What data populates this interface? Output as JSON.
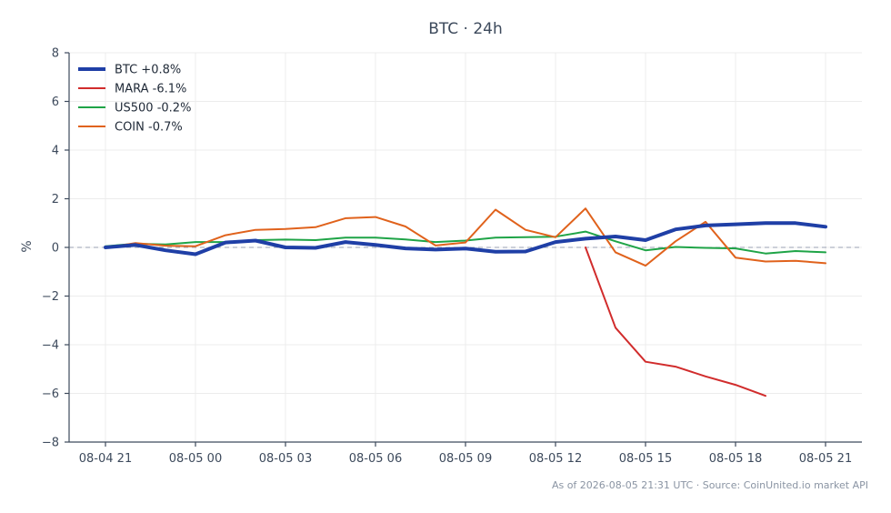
{
  "chart_data": {
    "type": "line",
    "title": "BTC · 24h",
    "xlabel": "",
    "ylabel": "%",
    "ylim": [
      -8,
      8
    ],
    "yticks": [
      -8,
      -6,
      -4,
      -2,
      0,
      2,
      4,
      6,
      8
    ],
    "ytick_labels": [
      "−8",
      "−6",
      "−4",
      "−2",
      "0",
      "2",
      "4",
      "6",
      "8"
    ],
    "x": [
      "08-04 21",
      "08-04 22",
      "08-04 23",
      "08-05 00",
      "08-05 01",
      "08-05 02",
      "08-05 03",
      "08-05 04",
      "08-05 05",
      "08-05 06",
      "08-05 07",
      "08-05 08",
      "08-05 09",
      "08-05 10",
      "08-05 11",
      "08-05 12",
      "08-05 13",
      "08-05 14",
      "08-05 15",
      "08-05 16",
      "08-05 17",
      "08-05 18",
      "08-05 19",
      "08-05 20",
      "08-05 21"
    ],
    "xtick_labels": [
      "08-04 21",
      "08-05 00",
      "08-05 03",
      "08-05 06",
      "08-05 09",
      "08-05 12",
      "08-05 15",
      "08-05 18",
      "08-05 21"
    ],
    "zero_line": true,
    "grid": true,
    "legend_position": "top-left",
    "series": [
      {
        "name": "BTC +0.8%",
        "color": "#1f3fa6",
        "width": "thick",
        "values": [
          0.0,
          0.1,
          -0.12,
          -0.28,
          0.2,
          0.28,
          0.0,
          -0.02,
          0.22,
          0.1,
          -0.04,
          -0.09,
          -0.05,
          -0.18,
          -0.17,
          0.22,
          0.36,
          0.45,
          0.3,
          0.74,
          0.9,
          0.95,
          1.0,
          1.0,
          0.85
        ]
      },
      {
        "name": "MARA -6.1%",
        "color": "#d12c2c",
        "width": "normal",
        "values": [
          null,
          null,
          null,
          null,
          null,
          null,
          null,
          null,
          null,
          null,
          null,
          null,
          null,
          null,
          null,
          null,
          0.0,
          -3.3,
          -4.7,
          -4.9,
          -5.3,
          -5.65,
          -6.1,
          null,
          null
        ]
      },
      {
        "name": "US500 -0.2%",
        "color": "#1fa447",
        "width": "normal",
        "values": [
          0.05,
          0.15,
          0.12,
          0.22,
          0.22,
          0.3,
          0.32,
          0.3,
          0.4,
          0.4,
          0.33,
          0.22,
          0.28,
          0.4,
          0.42,
          0.44,
          0.65,
          0.25,
          -0.12,
          0.02,
          -0.02,
          -0.04,
          -0.25,
          -0.15,
          -0.2
        ]
      },
      {
        "name": "COIN -0.7%",
        "color": "#e0621c",
        "width": "normal",
        "values": [
          -0.02,
          0.18,
          0.07,
          0.05,
          0.5,
          0.72,
          0.76,
          0.83,
          1.2,
          1.25,
          0.86,
          0.08,
          0.2,
          1.55,
          0.72,
          0.42,
          1.6,
          -0.2,
          -0.75,
          0.25,
          1.05,
          -0.42,
          -0.58,
          -0.55,
          -0.65
        ]
      }
    ]
  },
  "footer": "As of 2026-08-05 21:31 UTC · Source: CoinUnited.io market API"
}
